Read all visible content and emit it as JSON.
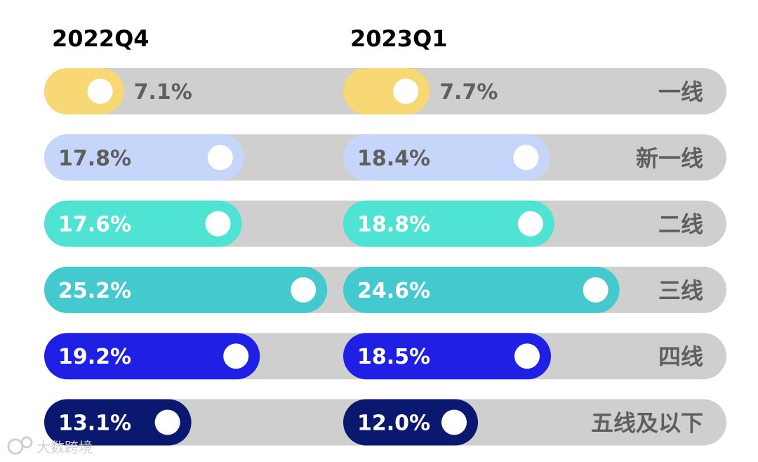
{
  "chart_data": {
    "type": "bar",
    "title": "",
    "series": [
      {
        "name": "2022Q4",
        "values": [
          7.1,
          17.8,
          17.6,
          25.2,
          19.2,
          13.1
        ],
        "labels": [
          "7.1%",
          "17.8%",
          "17.6%",
          "25.2%",
          "19.2%",
          "13.1%"
        ]
      },
      {
        "name": "2023Q1",
        "values": [
          7.7,
          18.4,
          18.8,
          24.6,
          18.5,
          12.0
        ],
        "labels": [
          "7.7%",
          "18.4%",
          "18.8%",
          "24.6%",
          "18.5%",
          "12.0%"
        ]
      }
    ],
    "categories": [
      "一线",
      "新一线",
      "二线",
      "三线",
      "四线",
      "五线及以下"
    ],
    "colors": [
      "#f8d775",
      "#c6d6fb",
      "#4ee3d3",
      "#44c9cf",
      "#2020e4",
      "#0a1870"
    ],
    "label_colors": [
      "#5f5f5f",
      "#5f5f5f",
      "#ffffff",
      "#ffffff",
      "#ffffff",
      "#ffffff"
    ],
    "track_color": "#cfcfcf",
    "knob_color": "#ffffff",
    "unit": "%"
  },
  "watermark": {
    "text": "大数跨境"
  }
}
